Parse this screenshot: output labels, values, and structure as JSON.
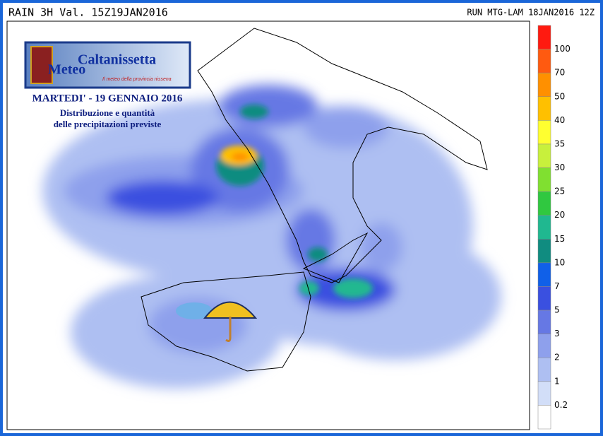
{
  "header": {
    "left": "RAIN 3H Val. 15Z19JAN2016",
    "right": "RUN MTG-LAM 18JAN2016 12Z"
  },
  "logo": {
    "title": "Caltanissetta",
    "subtitle": "Meteo",
    "tagline": "Il meteo della provincia nissena"
  },
  "caption": {
    "date": "MARTEDI' - 19 GENNAIO 2016",
    "line1": "Distribuzione e quantità",
    "line2": "delle precipitazioni previste"
  },
  "legend": {
    "thresholds": [
      100,
      70,
      50,
      40,
      35,
      30,
      25,
      20,
      15,
      10,
      7,
      5,
      3,
      2,
      1,
      0.2
    ],
    "colors": [
      "#ff1a10",
      "#ff5a10",
      "#ff9000",
      "#ffc000",
      "#ffff30",
      "#c8f03c",
      "#80e030",
      "#30c840",
      "#20b890",
      "#108c80",
      "#1060e8",
      "#3a50e0",
      "#6678e4",
      "#8ea0ec",
      "#aebff2",
      "#d2def8",
      "#ffffff"
    ]
  }
}
